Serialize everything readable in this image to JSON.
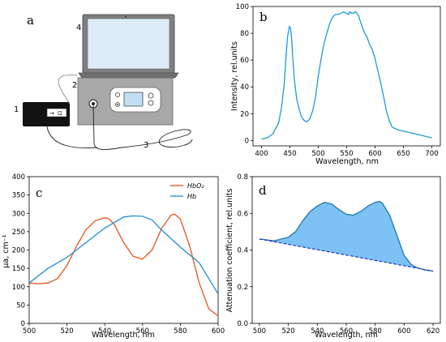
{
  "panel_letters": {
    "a": "a",
    "b": "b",
    "c": "c",
    "d": "d"
  },
  "diagram": {
    "labels": [
      "1",
      "2",
      "3",
      "4"
    ]
  },
  "chart_data": [
    {
      "panel": "b",
      "type": "line",
      "xlabel": "Wavelength, nm",
      "ylabel": "Intensity, rel.units",
      "xlim": [
        385,
        715
      ],
      "ylim": [
        -4,
        100
      ],
      "xticks": [
        400,
        450,
        500,
        550,
        600,
        650,
        700
      ],
      "yticks": [
        0,
        20,
        40,
        60,
        80,
        100
      ],
      "grid": false,
      "color": "#1f9bd7",
      "series": [
        {
          "x": [
            400,
            410,
            420,
            430,
            435,
            440,
            443,
            446,
            449,
            451,
            453,
            455,
            458,
            462,
            466,
            470,
            475,
            480,
            485,
            490,
            495,
            500,
            505,
            510,
            515,
            520,
            525,
            530,
            535,
            540,
            545,
            548,
            550,
            553,
            556,
            559,
            562,
            565,
            568,
            571,
            574,
            578,
            582,
            586,
            590,
            595,
            600,
            605,
            610,
            615,
            620,
            625,
            630,
            635,
            640,
            650,
            660,
            670,
            680,
            690,
            700
          ],
          "y": [
            1,
            2,
            5,
            13,
            24,
            42,
            62,
            78,
            85,
            84,
            76,
            62,
            45,
            31,
            24,
            18,
            15,
            14,
            16,
            22,
            32,
            48,
            61,
            72,
            80,
            87,
            92,
            94,
            94,
            95,
            96,
            95,
            95,
            94,
            96,
            95,
            95,
            96,
            95,
            93,
            89,
            84,
            80,
            77,
            72,
            68,
            61,
            52,
            43,
            33,
            22,
            15,
            10,
            9,
            8,
            7,
            6,
            5,
            4,
            3,
            2
          ]
        }
      ]
    },
    {
      "panel": "c",
      "type": "line",
      "xlabel": "Wavelength, nm",
      "ylabel": "μa, cm⁻¹",
      "xlim": [
        500,
        600
      ],
      "ylim": [
        0,
        400
      ],
      "xticks": [
        500,
        520,
        540,
        560,
        580,
        600
      ],
      "yticks": [
        0,
        50,
        100,
        150,
        200,
        250,
        300,
        350,
        400
      ],
      "grid": false,
      "legend": "top-right",
      "series": [
        {
          "name": "HbO₂",
          "color": "#e8521a",
          "x": [
            500,
            505,
            510,
            515,
            520,
            525,
            530,
            535,
            540,
            542,
            545,
            550,
            555,
            560,
            565,
            570,
            575,
            577,
            580,
            585,
            590,
            595,
            600
          ],
          "y": [
            110,
            108,
            110,
            122,
            158,
            210,
            255,
            280,
            288,
            286,
            270,
            220,
            183,
            175,
            200,
            258,
            295,
            298,
            285,
            210,
            110,
            40,
            20
          ]
        },
        {
          "name": "Hb",
          "color": "#1f8fd0",
          "x": [
            500,
            510,
            520,
            530,
            540,
            550,
            555,
            560,
            565,
            570,
            580,
            590,
            600
          ],
          "y": [
            110,
            150,
            180,
            220,
            260,
            290,
            293,
            292,
            282,
            255,
            208,
            165,
            80
          ]
        }
      ]
    },
    {
      "panel": "d",
      "type": "area",
      "xlabel": "Wavelength, nm",
      "ylabel": "Attenuation coefficient, rel.units",
      "xlim": [
        495,
        625
      ],
      "ylim": [
        0.0,
        0.8
      ],
      "xticks": [
        500,
        520,
        540,
        560,
        580,
        600,
        620
      ],
      "yticks": [
        0.0,
        0.2,
        0.4,
        0.6,
        0.8
      ],
      "grid": false,
      "line_color": "#1f78a8",
      "fill_color": "#7cc2f4",
      "baseline_color": "#1a2bc8",
      "series": [
        {
          "x": [
            500,
            510,
            520,
            525,
            530,
            535,
            540,
            545,
            550,
            555,
            560,
            565,
            570,
            575,
            580,
            583,
            585,
            590,
            595,
            600,
            605,
            610,
            615,
            620
          ],
          "y": [
            0.46,
            0.45,
            0.47,
            0.5,
            0.56,
            0.61,
            0.64,
            0.66,
            0.65,
            0.62,
            0.595,
            0.59,
            0.61,
            0.64,
            0.66,
            0.665,
            0.655,
            0.59,
            0.48,
            0.37,
            0.32,
            0.3,
            0.29,
            0.285
          ]
        },
        {
          "x": [
            500,
            620
          ],
          "y": [
            0.46,
            0.285
          ]
        }
      ]
    }
  ]
}
